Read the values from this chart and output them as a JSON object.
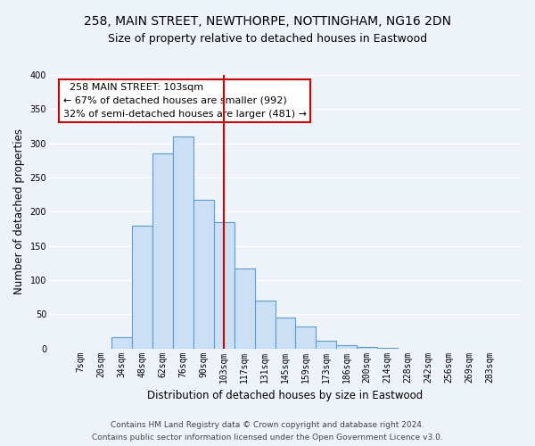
{
  "title": "258, MAIN STREET, NEWTHORPE, NOTTINGHAM, NG16 2DN",
  "subtitle": "Size of property relative to detached houses in Eastwood",
  "xlabel": "Distribution of detached houses by size in Eastwood",
  "ylabel": "Number of detached properties",
  "bar_labels": [
    "7sqm",
    "20sqm",
    "34sqm",
    "48sqm",
    "62sqm",
    "76sqm",
    "90sqm",
    "103sqm",
    "117sqm",
    "131sqm",
    "145sqm",
    "159sqm",
    "173sqm",
    "186sqm",
    "200sqm",
    "214sqm",
    "228sqm",
    "242sqm",
    "256sqm",
    "269sqm",
    "283sqm"
  ],
  "bar_heights": [
    0,
    0,
    16,
    180,
    285,
    310,
    218,
    185,
    117,
    70,
    45,
    32,
    11,
    5,
    2,
    1,
    0,
    0,
    0,
    0,
    0
  ],
  "bar_color": "#cce0f5",
  "bar_edge_color": "#5b9bd5",
  "vline_x": 7,
  "vline_color": "#cc0000",
  "annotation_title": "258 MAIN STREET: 103sqm",
  "annotation_line1": "← 67% of detached houses are smaller (992)",
  "annotation_line2": "32% of semi-detached houses are larger (481) →",
  "annotation_box_color": "#ffffff",
  "annotation_box_edge": "#cc0000",
  "ylim": [
    0,
    400
  ],
  "yticks": [
    0,
    50,
    100,
    150,
    200,
    250,
    300,
    350,
    400
  ],
  "footer_line1": "Contains HM Land Registry data © Crown copyright and database right 2024.",
  "footer_line2": "Contains public sector information licensed under the Open Government Licence v3.0.",
  "bg_color": "#eef2f9",
  "plot_bg_color": "#eef2f9",
  "grid_color": "#ffffff",
  "title_fontsize": 10,
  "subtitle_fontsize": 9,
  "axis_label_fontsize": 8.5,
  "tick_fontsize": 7,
  "footer_fontsize": 6.5,
  "annotation_fontsize": 8,
  "annotation_title_fontsize": 8.5
}
